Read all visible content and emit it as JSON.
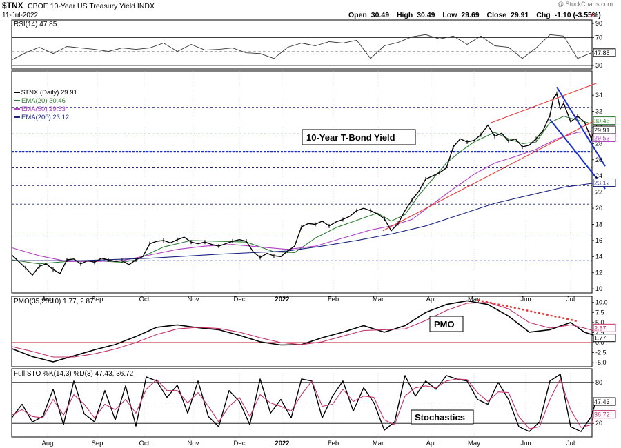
{
  "header": {
    "symbol": "$TNX",
    "name": "CBOE 10-Year US Treasury Yield INDX",
    "watermark": "@ StockCharts.com",
    "date": "11-Jul-2022",
    "open_label": "Open",
    "open": "30.49",
    "high_label": "High",
    "high": "30.49",
    "low_label": "Low",
    "low": "29.69",
    "close_label": "Close",
    "close": "29.91",
    "chg_label": "Chg",
    "chg": "-1.10 (-3.55%)"
  },
  "colors": {
    "price": "#000000",
    "ema20": "#2e7d32",
    "ema50": "#b040c0",
    "ema200": "#1a237e",
    "trend_red": "#e53935",
    "channel_blue": "#1a2fd0",
    "pmo_signal": "#c0306a",
    "zero_line": "#c8102e",
    "bg": "#ffffff"
  },
  "chart_data": [
    {
      "type": "line",
      "panel": "rsi",
      "title": "RSI(14) 47.85",
      "ylim": [
        25,
        95
      ],
      "yticks": [
        "90",
        "70",
        "50",
        "30"
      ],
      "ref_lines": [
        70,
        30
      ],
      "last_value_label": "47.85",
      "x": [
        0,
        20,
        40,
        60,
        80,
        100,
        120,
        140,
        160,
        180,
        200,
        220,
        240,
        260,
        280,
        300,
        320,
        340,
        360,
        380,
        400,
        420,
        440,
        460,
        480,
        500,
        520,
        540,
        560,
        580,
        600,
        620,
        640,
        660,
        680,
        700,
        720,
        740,
        760,
        780,
        800,
        820,
        840
      ],
      "y": [
        38,
        48,
        56,
        47,
        57,
        55,
        53,
        50,
        55,
        53,
        55,
        62,
        50,
        60,
        52,
        53,
        55,
        48,
        47,
        40,
        56,
        62,
        58,
        64,
        62,
        66,
        40,
        58,
        63,
        71,
        74,
        68,
        72,
        60,
        72,
        58,
        56,
        40,
        55,
        74,
        72,
        40,
        48
      ]
    },
    {
      "type": "line",
      "panel": "price",
      "title": "$TNX (Daily) 29.91",
      "annotation": "10-Year T-Bond Yield",
      "ylim": [
        9.5,
        37
      ],
      "yticks": [
        "10",
        "12",
        "14",
        "16",
        "18",
        "20",
        "22",
        "24",
        "26",
        "28",
        "30",
        "32",
        "34"
      ],
      "hlines_dashed": [
        13.5,
        16.8,
        20.5,
        22.8,
        25,
        27,
        29.2,
        32.5
      ],
      "hline_bold": 27,
      "value_labels": [
        "30.46",
        "29.91",
        "29.53",
        "23.12"
      ],
      "x_labels": [
        "Aug",
        "Sep",
        "Oct",
        "Nov",
        "Dec",
        "2022",
        "Feb",
        "Mar",
        "Apr",
        "May",
        "Jun",
        "Jul"
      ],
      "series": [
        {
          "name": "EMA(20) 30.46",
          "key": "ema20",
          "x": [
            0,
            40,
            80,
            120,
            160,
            180,
            220,
            260,
            300,
            340,
            380,
            410,
            440,
            470,
            500,
            530,
            550,
            570,
            590,
            610,
            630,
            650,
            670,
            700,
            720,
            740,
            760,
            780,
            800,
            820,
            840
          ],
          "y": [
            13.6,
            13.1,
            13.4,
            13.5,
            13.3,
            13.6,
            15.2,
            16.0,
            15.9,
            15.8,
            14.6,
            14.5,
            16.3,
            17.6,
            18.5,
            19.4,
            18.4,
            19.2,
            21.6,
            23.6,
            25.6,
            27.0,
            28.2,
            29.4,
            28.6,
            28.0,
            28.2,
            30.6,
            31.4,
            30.9,
            30.5
          ]
        },
        {
          "name": "EMA(50) 29.53",
          "key": "ema50",
          "x": [
            0,
            40,
            80,
            120,
            160,
            200,
            240,
            280,
            320,
            360,
            400,
            440,
            480,
            520,
            550,
            580,
            610,
            640,
            670,
            700,
            730,
            760,
            790,
            820,
            840
          ],
          "y": [
            15.1,
            14.1,
            13.4,
            13.4,
            13.5,
            14.2,
            14.9,
            15.3,
            15.5,
            15.2,
            14.9,
            15.3,
            16.3,
            17.3,
            17.8,
            18.6,
            20.5,
            22.4,
            24.2,
            25.6,
            26.4,
            27.3,
            28.6,
            29.4,
            29.5
          ]
        },
        {
          "name": "EMA(200) 23.12",
          "key": "ema200",
          "x": [
            0,
            100,
            200,
            300,
            400,
            450,
            500,
            550,
            600,
            650,
            700,
            750,
            800,
            845
          ],
          "y": [
            13.5,
            13.5,
            13.8,
            14.3,
            14.7,
            15.3,
            16.0,
            16.8,
            17.8,
            19.2,
            20.6,
            21.6,
            22.6,
            23.12
          ]
        },
        {
          "name": "$TNX",
          "key": "price",
          "x": [
            0,
            10,
            20,
            30,
            40,
            50,
            60,
            70,
            80,
            90,
            100,
            110,
            120,
            130,
            140,
            150,
            160,
            170,
            180,
            190,
            200,
            210,
            220,
            230,
            240,
            250,
            260,
            270,
            280,
            290,
            300,
            310,
            320,
            330,
            340,
            350,
            360,
            370,
            380,
            390,
            400,
            410,
            420,
            430,
            440,
            450,
            460,
            470,
            480,
            490,
            500,
            510,
            520,
            530,
            540,
            550,
            560,
            570,
            580,
            590,
            600,
            610,
            620,
            630,
            640,
            650,
            660,
            670,
            680,
            690,
            700,
            710,
            720,
            730,
            740,
            750,
            760,
            770,
            780,
            785,
            790,
            795,
            800,
            810,
            820,
            830,
            840,
            845
          ],
          "y": [
            14.2,
            13.4,
            12.6,
            11.7,
            12.8,
            13.1,
            12.4,
            11.9,
            13.6,
            13.7,
            13.1,
            13.5,
            13.3,
            13.8,
            13.6,
            13.4,
            13.5,
            13.0,
            13.6,
            14.0,
            15.6,
            15.9,
            16.0,
            15.7,
            16.1,
            16.4,
            15.8,
            15.6,
            15.8,
            15.5,
            15.3,
            15.6,
            15.9,
            16.1,
            15.9,
            14.6,
            13.9,
            14.4,
            14.1,
            14.0,
            14.7,
            15.3,
            17.7,
            18.1,
            18.0,
            18.4,
            17.8,
            18.3,
            18.6,
            19.0,
            19.7,
            20.0,
            19.7,
            19.3,
            18.7,
            17.2,
            18.1,
            19.7,
            21.0,
            22.1,
            23.6,
            24.0,
            24.4,
            25.0,
            27.6,
            28.6,
            28.2,
            28.4,
            29.1,
            30.3,
            28.9,
            29.3,
            28.3,
            28.6,
            27.6,
            27.8,
            28.6,
            29.6,
            31.5,
            33.6,
            34.2,
            32.3,
            33.0,
            30.7,
            31.4,
            30.7,
            28.6,
            29.91
          ]
        }
      ],
      "trend_lines": [
        {
          "key": "trend_red",
          "x": [
            538,
            848
          ],
          "y": [
            17.2,
            31.0
          ]
        },
        {
          "key": "trend_red",
          "x": [
            695,
            848
          ],
          "y": [
            30.6,
            35.5
          ]
        },
        {
          "key": "channel_blue",
          "x": [
            790,
            860
          ],
          "y": [
            35.0,
            25.2
          ]
        },
        {
          "key": "channel_blue",
          "x": [
            780,
            860
          ],
          "y": [
            31.0,
            22.4
          ]
        }
      ]
    },
    {
      "type": "line",
      "panel": "pmo",
      "title": "PMO(35,20,10) 1.77, 2.87",
      "annotation": "PMO",
      "ylim": [
        -6,
        11.5
      ],
      "yticks": [
        "10.0",
        "7.5",
        "5.0",
        "2.5",
        "0.0",
        "-2.5",
        "-5.0"
      ],
      "value_labels": [
        "2.87",
        "1.77"
      ],
      "series": [
        {
          "name": "PMO",
          "key": "price",
          "x": [
            0,
            30,
            60,
            90,
            120,
            150,
            180,
            210,
            240,
            270,
            300,
            330,
            360,
            390,
            420,
            450,
            480,
            510,
            540,
            570,
            600,
            630,
            660,
            690,
            720,
            750,
            780,
            810,
            830,
            845
          ],
          "y": [
            -1.5,
            -3.5,
            -4.8,
            -3.3,
            -1.8,
            -0.5,
            1.5,
            3.8,
            4.4,
            3.7,
            3.2,
            1.8,
            0.2,
            -0.6,
            -0.5,
            1.2,
            2.6,
            4.2,
            2.6,
            4.2,
            7.5,
            9.5,
            10.4,
            9.5,
            6.6,
            2.6,
            3.2,
            5.0,
            2.6,
            1.77
          ]
        },
        {
          "name": "Signal",
          "key": "pmo_signal",
          "x": [
            0,
            30,
            60,
            90,
            120,
            150,
            180,
            210,
            240,
            270,
            300,
            330,
            360,
            390,
            420,
            450,
            480,
            510,
            540,
            570,
            600,
            630,
            660,
            690,
            720,
            750,
            780,
            810,
            830,
            845
          ],
          "y": [
            -1.0,
            -2.2,
            -3.6,
            -3.6,
            -2.8,
            -1.6,
            0.0,
            2.0,
            3.4,
            3.8,
            3.5,
            2.6,
            1.2,
            0.0,
            -0.5,
            0.2,
            1.6,
            3.0,
            3.2,
            3.4,
            5.5,
            8.0,
            9.8,
            10.0,
            8.4,
            5.0,
            3.6,
            4.4,
            3.6,
            2.87
          ]
        }
      ],
      "dotted_trend": {
        "key": "trend_red",
        "x": [
          675,
          820
        ],
        "y": [
          10.6,
          5.3
        ]
      }
    },
    {
      "type": "line",
      "panel": "sto",
      "title": "Full STO %K(14,3) %D(3) 47.43, 36.72",
      "annotation": "Stochastics",
      "ylim": [
        0,
        100
      ],
      "yticks": [
        "80",
        "50",
        "20"
      ],
      "ref_lines": [
        80,
        20
      ],
      "value_labels": [
        "47.43",
        "36.72"
      ],
      "series": [
        {
          "name": "%K",
          "key": "price",
          "x": [
            0,
            15,
            30,
            45,
            60,
            75,
            90,
            105,
            120,
            135,
            150,
            165,
            180,
            195,
            210,
            225,
            240,
            255,
            270,
            285,
            300,
            315,
            330,
            345,
            360,
            375,
            390,
            405,
            420,
            435,
            450,
            465,
            480,
            495,
            510,
            525,
            540,
            555,
            570,
            585,
            600,
            615,
            630,
            645,
            660,
            675,
            690,
            705,
            720,
            735,
            750,
            765,
            780,
            795,
            810,
            825,
            840,
            845
          ],
          "y": [
            28,
            48,
            22,
            30,
            70,
            18,
            82,
            34,
            22,
            68,
            25,
            75,
            16,
            88,
            82,
            58,
            76,
            35,
            82,
            30,
            15,
            68,
            52,
            18,
            85,
            35,
            55,
            28,
            85,
            82,
            28,
            60,
            82,
            38,
            72,
            50,
            10,
            22,
            90,
            60,
            82,
            70,
            90,
            85,
            82,
            55,
            48,
            80,
            55,
            15,
            8,
            22,
            82,
            92,
            15,
            8,
            30,
            47.43
          ]
        },
        {
          "name": "%D",
          "key": "pmo_signal",
          "x": [
            0,
            15,
            30,
            45,
            60,
            75,
            90,
            105,
            120,
            135,
            150,
            165,
            180,
            195,
            210,
            225,
            240,
            255,
            270,
            285,
            300,
            315,
            330,
            345,
            360,
            375,
            390,
            405,
            420,
            435,
            450,
            465,
            480,
            495,
            510,
            525,
            540,
            555,
            570,
            585,
            600,
            615,
            630,
            645,
            660,
            675,
            690,
            705,
            720,
            735,
            750,
            765,
            780,
            795,
            810,
            825,
            840,
            845
          ],
          "y": [
            32,
            40,
            30,
            28,
            55,
            32,
            62,
            48,
            28,
            48,
            40,
            55,
            35,
            70,
            84,
            68,
            68,
            50,
            65,
            45,
            22,
            45,
            58,
            30,
            62,
            50,
            45,
            38,
            62,
            82,
            45,
            48,
            70,
            52,
            60,
            58,
            25,
            18,
            60,
            72,
            75,
            72,
            82,
            85,
            84,
            65,
            52,
            66,
            65,
            30,
            12,
            15,
            55,
            85,
            40,
            14,
            18,
            36.72
          ]
        }
      ],
      "x_labels": [
        "Aug",
        "Sep",
        "Oct",
        "Nov",
        "Dec",
        "2022",
        "Feb",
        "Mar",
        "Apr",
        "May",
        "Jun",
        "Jul"
      ]
    }
  ]
}
